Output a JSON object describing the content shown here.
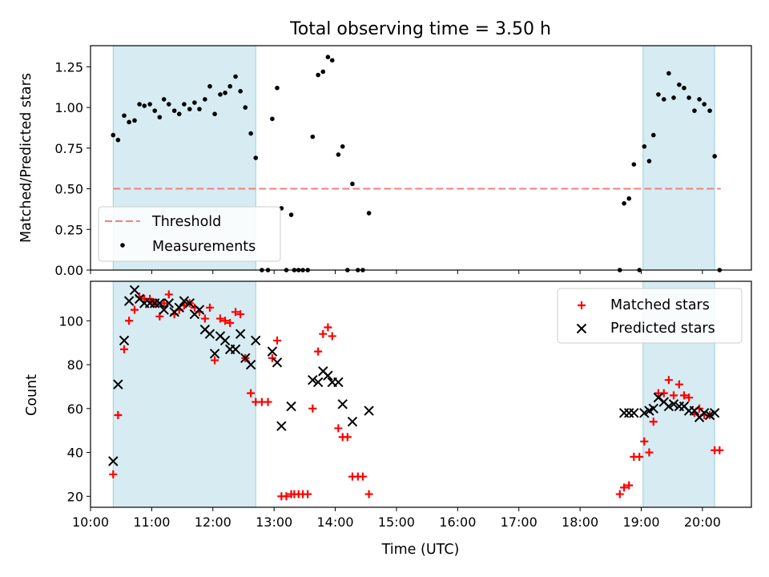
{
  "chart_data": [
    {
      "type": "scatter",
      "title": "Total observing time = 3.50 h",
      "ylabel": "Matched/Predicted stars",
      "xlim": [
        10.0,
        20.8
      ],
      "ylim": [
        0.0,
        1.38
      ],
      "yticks": [
        0.0,
        0.25,
        0.5,
        0.75,
        1.0,
        1.25
      ],
      "ytick_labels": [
        "0.00",
        "0.25",
        "0.50",
        "0.75",
        "1.00",
        "1.25"
      ],
      "shaded_intervals": [
        [
          10.37,
          12.7
        ],
        [
          19.03,
          20.2
        ]
      ],
      "threshold": {
        "name": "Threshold",
        "y": 0.5,
        "x": [
          10.37,
          20.3
        ],
        "color": "#f08080"
      },
      "legend": {
        "position": "lower-left",
        "entries": [
          "Threshold",
          "Measurements"
        ]
      },
      "series": [
        {
          "name": "Measurements",
          "color": "#000000",
          "marker": "dot",
          "points": [
            [
              10.37,
              0.83
            ],
            [
              10.45,
              0.8
            ],
            [
              10.55,
              0.95
            ],
            [
              10.63,
              0.91
            ],
            [
              10.72,
              0.92
            ],
            [
              10.8,
              1.02
            ],
            [
              10.88,
              1.01
            ],
            [
              10.97,
              1.02
            ],
            [
              11.05,
              0.98
            ],
            [
              11.13,
              0.94
            ],
            [
              11.2,
              1.05
            ],
            [
              11.28,
              1.02
            ],
            [
              11.37,
              0.98
            ],
            [
              11.45,
              0.96
            ],
            [
              11.53,
              1.02
            ],
            [
              11.62,
              0.99
            ],
            [
              11.7,
              1.03
            ],
            [
              11.78,
              0.99
            ],
            [
              11.87,
              1.05
            ],
            [
              11.95,
              1.13
            ],
            [
              12.03,
              0.96
            ],
            [
              12.12,
              1.08
            ],
            [
              12.2,
              1.09
            ],
            [
              12.28,
              1.13
            ],
            [
              12.37,
              1.19
            ],
            [
              12.45,
              1.1
            ],
            [
              12.53,
              1.0
            ],
            [
              12.62,
              0.84
            ],
            [
              12.7,
              0.69
            ],
            [
              12.8,
              0.0
            ],
            [
              12.9,
              0.0
            ],
            [
              12.97,
              0.93
            ],
            [
              13.05,
              1.12
            ],
            [
              13.12,
              0.38
            ],
            [
              13.2,
              0.0
            ],
            [
              13.28,
              0.34
            ],
            [
              13.33,
              0.0
            ],
            [
              13.4,
              0.0
            ],
            [
              13.47,
              0.0
            ],
            [
              13.55,
              0.0
            ],
            [
              13.63,
              0.82
            ],
            [
              13.72,
              1.2
            ],
            [
              13.8,
              1.22
            ],
            [
              13.88,
              1.31
            ],
            [
              13.95,
              1.29
            ],
            [
              14.05,
              0.71
            ],
            [
              14.12,
              0.76
            ],
            [
              14.2,
              0.0
            ],
            [
              14.28,
              0.53
            ],
            [
              14.37,
              0.0
            ],
            [
              14.45,
              0.0
            ],
            [
              14.55,
              0.35
            ],
            [
              18.65,
              0.0
            ],
            [
              18.72,
              0.41
            ],
            [
              18.8,
              0.44
            ],
            [
              18.88,
              0.65
            ],
            [
              18.97,
              0.0
            ],
            [
              19.05,
              0.76
            ],
            [
              19.13,
              0.67
            ],
            [
              19.2,
              0.83
            ],
            [
              19.28,
              1.08
            ],
            [
              19.37,
              1.05
            ],
            [
              19.45,
              1.21
            ],
            [
              19.53,
              1.06
            ],
            [
              19.62,
              1.14
            ],
            [
              19.7,
              1.12
            ],
            [
              19.78,
              1.06
            ],
            [
              19.87,
              0.98
            ],
            [
              19.95,
              1.05
            ],
            [
              20.03,
              1.02
            ],
            [
              20.12,
              0.98
            ],
            [
              20.2,
              0.7
            ],
            [
              20.28,
              0.0
            ]
          ]
        }
      ]
    },
    {
      "type": "scatter",
      "ylabel": "Count",
      "xlabel": "Time (UTC)",
      "xlim": [
        10.0,
        20.8
      ],
      "ylim": [
        15,
        118
      ],
      "yticks": [
        20,
        40,
        60,
        80,
        100
      ],
      "xticks": [
        10,
        11,
        12,
        13,
        14,
        15,
        16,
        17,
        18,
        19,
        20
      ],
      "xtick_labels": [
        "10:00",
        "11:00",
        "12:00",
        "13:00",
        "14:00",
        "15:00",
        "16:00",
        "17:00",
        "18:00",
        "19:00",
        "20:00"
      ],
      "shaded_intervals": [
        [
          10.37,
          12.7
        ],
        [
          19.03,
          20.2
        ]
      ],
      "legend": {
        "position": "upper-right",
        "entries": [
          "Matched stars",
          "Predicted stars"
        ]
      },
      "series": [
        {
          "name": "Matched stars",
          "color": "#ff0000",
          "marker": "plus",
          "points": [
            [
              10.37,
              30
            ],
            [
              10.45,
              57
            ],
            [
              10.55,
              87
            ],
            [
              10.63,
              100
            ],
            [
              10.72,
              105
            ],
            [
              10.8,
              111
            ],
            [
              10.88,
              110
            ],
            [
              10.97,
              110
            ],
            [
              11.05,
              108
            ],
            [
              11.13,
              102
            ],
            [
              11.2,
              108
            ],
            [
              11.28,
              112
            ],
            [
              11.37,
              103
            ],
            [
              11.45,
              105
            ],
            [
              11.53,
              107
            ],
            [
              11.62,
              108
            ],
            [
              11.7,
              106
            ],
            [
              11.78,
              104
            ],
            [
              11.87,
              101
            ],
            [
              11.95,
              106
            ],
            [
              12.03,
              82
            ],
            [
              12.12,
              101
            ],
            [
              12.2,
              100
            ],
            [
              12.28,
              99
            ],
            [
              12.37,
              104
            ],
            [
              12.45,
              103
            ],
            [
              12.53,
              83
            ],
            [
              12.62,
              67
            ],
            [
              12.7,
              63
            ],
            [
              12.8,
              63
            ],
            [
              12.9,
              63
            ],
            [
              12.97,
              83
            ],
            [
              13.05,
              91
            ],
            [
              13.12,
              20
            ],
            [
              13.2,
              20
            ],
            [
              13.28,
              21
            ],
            [
              13.33,
              21
            ],
            [
              13.4,
              21
            ],
            [
              13.47,
              21
            ],
            [
              13.55,
              21
            ],
            [
              13.63,
              60
            ],
            [
              13.72,
              86
            ],
            [
              13.8,
              94
            ],
            [
              13.88,
              97
            ],
            [
              13.95,
              93
            ],
            [
              14.05,
              51
            ],
            [
              14.12,
              47
            ],
            [
              14.2,
              47
            ],
            [
              14.28,
              29
            ],
            [
              14.37,
              29
            ],
            [
              14.45,
              29
            ],
            [
              14.55,
              21
            ],
            [
              18.65,
              21
            ],
            [
              18.72,
              24
            ],
            [
              18.8,
              25
            ],
            [
              18.88,
              38
            ],
            [
              18.97,
              38
            ],
            [
              19.05,
              45
            ],
            [
              19.13,
              40
            ],
            [
              19.2,
              54
            ],
            [
              19.28,
              67
            ],
            [
              19.37,
              67
            ],
            [
              19.45,
              73
            ],
            [
              19.53,
              66
            ],
            [
              19.62,
              71
            ],
            [
              19.7,
              66
            ],
            [
              19.78,
              65
            ],
            [
              19.87,
              58
            ],
            [
              19.95,
              60
            ],
            [
              20.03,
              57
            ],
            [
              20.12,
              57
            ],
            [
              20.2,
              41
            ],
            [
              20.28,
              41
            ]
          ]
        },
        {
          "name": "Predicted stars",
          "color": "#000000",
          "marker": "x",
          "points": [
            [
              10.37,
              36
            ],
            [
              10.45,
              71
            ],
            [
              10.55,
              91
            ],
            [
              10.63,
              109
            ],
            [
              10.72,
              114
            ],
            [
              10.8,
              110
            ],
            [
              10.88,
              108
            ],
            [
              10.97,
              108
            ],
            [
              11.05,
              108
            ],
            [
              11.13,
              108
            ],
            [
              11.2,
              105
            ],
            [
              11.28,
              108
            ],
            [
              11.37,
              104
            ],
            [
              11.45,
              106
            ],
            [
              11.53,
              109
            ],
            [
              11.62,
              108
            ],
            [
              11.7,
              103
            ],
            [
              11.78,
              105
            ],
            [
              11.87,
              96
            ],
            [
              11.95,
              94
            ],
            [
              12.03,
              85
            ],
            [
              12.12,
              93
            ],
            [
              12.2,
              91
            ],
            [
              12.28,
              87
            ],
            [
              12.37,
              87
            ],
            [
              12.45,
              94
            ],
            [
              12.53,
              83
            ],
            [
              12.62,
              80
            ],
            [
              12.7,
              91
            ],
            [
              12.97,
              86
            ],
            [
              13.05,
              81
            ],
            [
              13.12,
              52
            ],
            [
              13.28,
              61
            ],
            [
              13.63,
              73
            ],
            [
              13.72,
              72
            ],
            [
              13.8,
              77
            ],
            [
              13.88,
              75
            ],
            [
              13.95,
              72
            ],
            [
              14.05,
              72
            ],
            [
              14.12,
              62
            ],
            [
              14.28,
              54
            ],
            [
              14.55,
              59
            ],
            [
              18.72,
              58
            ],
            [
              18.8,
              58
            ],
            [
              18.88,
              58
            ],
            [
              19.05,
              58
            ],
            [
              19.13,
              59
            ],
            [
              19.2,
              60
            ],
            [
              19.28,
              65
            ],
            [
              19.37,
              63
            ],
            [
              19.45,
              61
            ],
            [
              19.53,
              62
            ],
            [
              19.62,
              61
            ],
            [
              19.7,
              61
            ],
            [
              19.78,
              59
            ],
            [
              19.87,
              59
            ],
            [
              19.95,
              56
            ],
            [
              20.03,
              58
            ],
            [
              20.12,
              57
            ],
            [
              20.2,
              58
            ]
          ]
        }
      ]
    }
  ]
}
